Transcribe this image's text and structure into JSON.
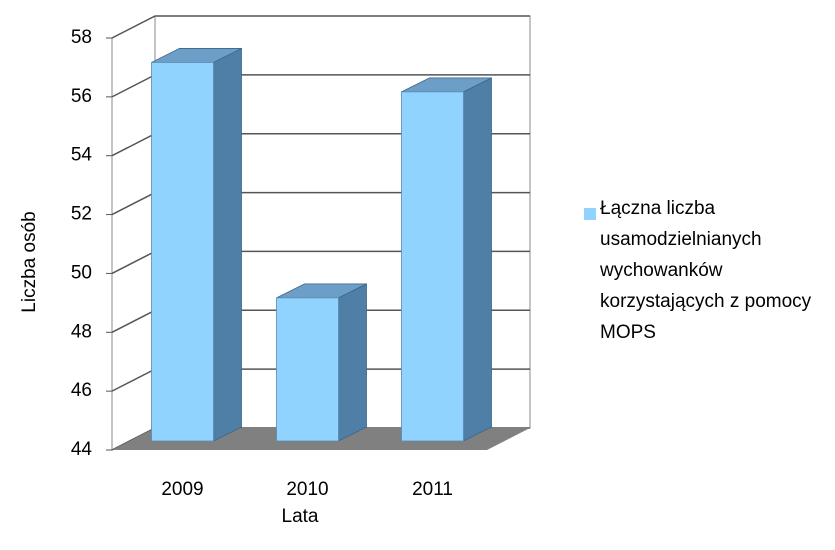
{
  "chart_data": {
    "type": "bar3d",
    "categories": [
      "2009",
      "2010",
      "2011"
    ],
    "series": [
      {
        "name": "Łączna liczba usamodzielnianych wychowanków korzystających z pomocy MOPS",
        "color": "#8fd3fe",
        "values": [
          57,
          49,
          56
        ]
      }
    ],
    "ylim": [
      44,
      58
    ],
    "yticks": [
      44,
      46,
      48,
      50,
      52,
      54,
      56,
      58
    ],
    "ylabel": "Liczba osób",
    "xlabel": "Lata",
    "grid": true,
    "legend": "right"
  }
}
